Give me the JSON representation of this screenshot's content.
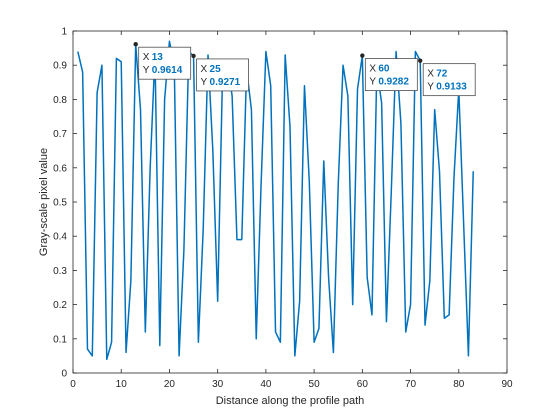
{
  "chart_data": {
    "type": "line",
    "title": "",
    "xlabel": "Distance along the profile path",
    "ylabel": "Gray-scale pixel value",
    "xlim": [
      0,
      90
    ],
    "ylim": [
      0,
      1
    ],
    "xticks": [
      0,
      10,
      20,
      30,
      40,
      50,
      60,
      70,
      80,
      90
    ],
    "yticks": [
      0,
      0.1,
      0.2,
      0.3,
      0.4,
      0.5,
      0.6,
      0.7,
      0.8,
      0.9,
      1
    ],
    "grid": false,
    "series": [
      {
        "color": "#0072BD",
        "x": [
          1,
          2,
          3,
          4,
          5,
          6,
          7,
          8,
          9,
          10,
          11,
          12,
          13,
          14,
          15,
          16,
          17,
          18,
          19,
          20,
          21,
          22,
          23,
          24,
          25,
          26,
          27,
          28,
          29,
          30,
          31,
          32,
          33,
          34,
          35,
          36,
          37,
          38,
          39,
          40,
          41,
          42,
          43,
          44,
          45,
          46,
          47,
          48,
          49,
          50,
          51,
          52,
          53,
          54,
          55,
          56,
          57,
          58,
          59,
          60,
          61,
          62,
          63,
          64,
          65,
          66,
          67,
          68,
          69,
          70,
          71,
          72,
          73,
          74,
          75,
          76,
          77,
          78,
          79,
          80,
          81,
          82,
          83
        ],
        "y": [
          0.94,
          0.88,
          0.07,
          0.05,
          0.82,
          0.9,
          0.04,
          0.09,
          0.92,
          0.91,
          0.06,
          0.27,
          0.9614,
          0.77,
          0.12,
          0.6,
          0.93,
          0.08,
          0.8,
          0.97,
          0.9,
          0.05,
          0.36,
          0.94,
          0.9271,
          0.09,
          0.42,
          0.93,
          0.65,
          0.21,
          0.87,
          0.91,
          0.81,
          0.39,
          0.39,
          0.89,
          0.77,
          0.1,
          0.55,
          0.94,
          0.84,
          0.12,
          0.09,
          0.93,
          0.72,
          0.05,
          0.21,
          0.84,
          0.56,
          0.09,
          0.13,
          0.62,
          0.28,
          0.06,
          0.55,
          0.9,
          0.81,
          0.2,
          0.83,
          0.9282,
          0.28,
          0.17,
          0.89,
          0.79,
          0.15,
          0.53,
          0.94,
          0.73,
          0.12,
          0.2,
          0.94,
          0.9133,
          0.14,
          0.27,
          0.77,
          0.59,
          0.16,
          0.17,
          0.57,
          0.83,
          0.44,
          0.05,
          0.59
        ]
      }
    ],
    "datatips": [
      {
        "x_label": "X",
        "y_label": "Y",
        "x_text": "13",
        "y_text": "0.9614",
        "x": 13,
        "y": 0.9614
      },
      {
        "x_label": "X",
        "y_label": "Y",
        "x_text": "25",
        "y_text": "0.9271",
        "x": 25,
        "y": 0.9271
      },
      {
        "x_label": "X",
        "y_label": "Y",
        "x_text": "60",
        "y_text": "0.9282",
        "x": 60,
        "y": 0.9282
      },
      {
        "x_label": "X",
        "y_label": "Y",
        "x_text": "72",
        "y_text": "0.9133",
        "x": 72,
        "y": 0.9133
      }
    ]
  }
}
